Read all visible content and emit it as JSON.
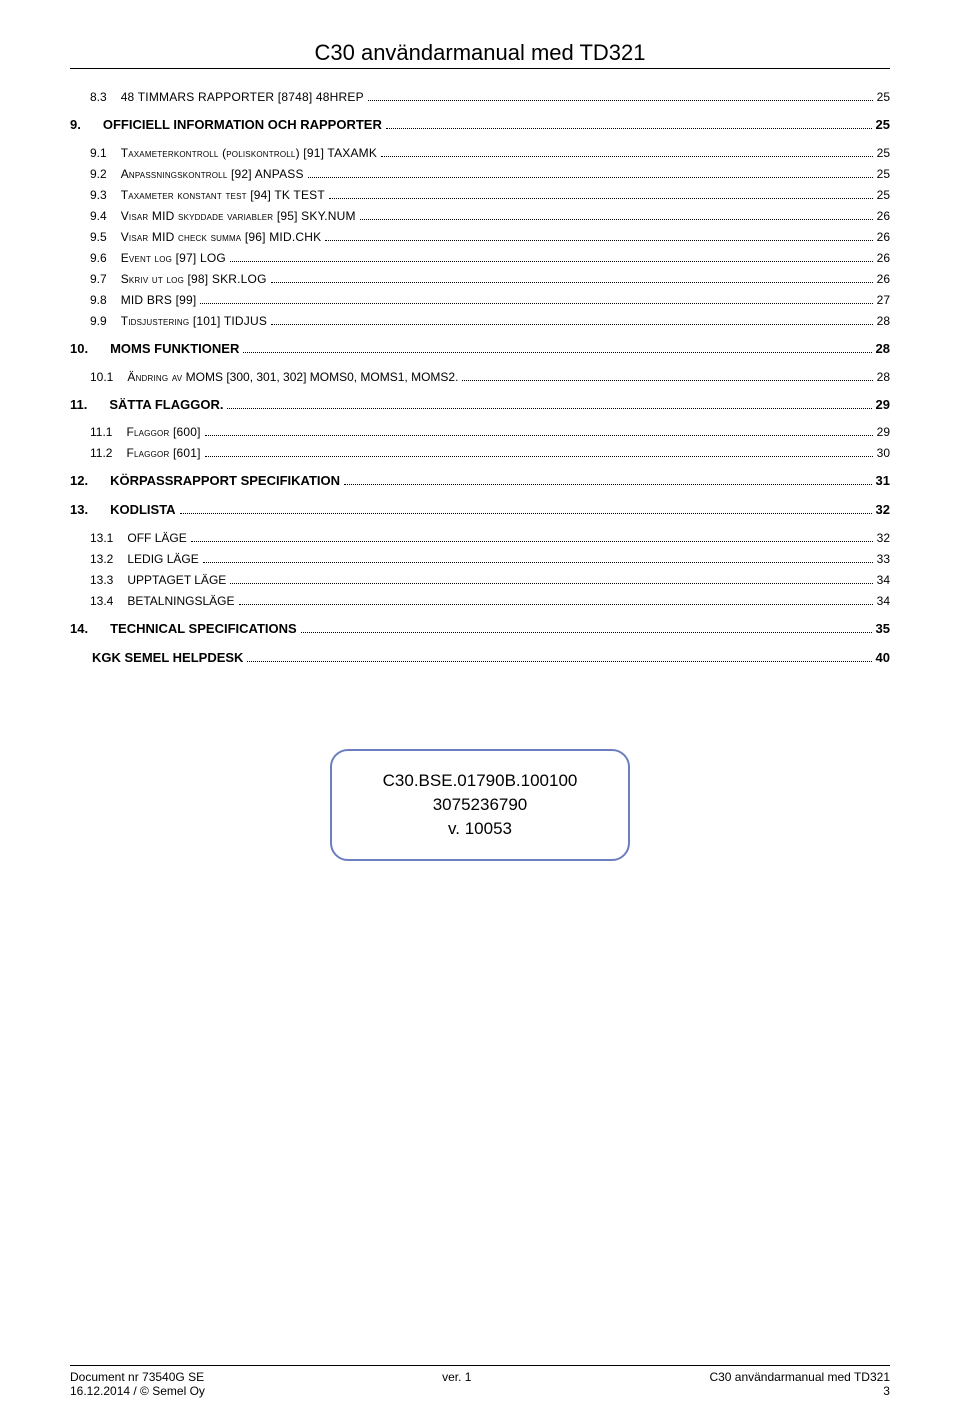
{
  "header_title": "C30 användarmanual med TD321",
  "toc": [
    {
      "level": 1,
      "num": "8.3",
      "title_smallcaps": "48 TIMMARS RAPPORTER [8748] 48HREP",
      "page": "25",
      "spacer_before": false
    },
    {
      "level": 0,
      "num": "9.",
      "title": "OFFICIELL INFORMATION OCH RAPPORTER",
      "page": "25",
      "spacer_before": true
    },
    {
      "level": 1,
      "num": "9.1",
      "title_mixed": [
        {
          "sc": "Taxameterkontroll (poliskontroll) [91] TAXAMK"
        }
      ],
      "page": "25",
      "spacer_before": true
    },
    {
      "level": 1,
      "num": "9.2",
      "title_mixed": [
        {
          "sc": "Anpassningskontroll [92] ANPASS"
        }
      ],
      "page": "25"
    },
    {
      "level": 1,
      "num": "9.3",
      "title_mixed": [
        {
          "sc": "Taxameter konstant test [94] TK TEST"
        }
      ],
      "page": "25"
    },
    {
      "level": 1,
      "num": "9.4",
      "title_mixed": [
        {
          "sc": "Visar MID skyddade variabler [95] SKY.NUM"
        }
      ],
      "page": "26"
    },
    {
      "level": 1,
      "num": "9.5",
      "title_mixed": [
        {
          "sc": "Visar MID check summa [96] MID.CHK"
        }
      ],
      "page": "26"
    },
    {
      "level": 1,
      "num": "9.6",
      "title_mixed": [
        {
          "sc": "Event log [97] LOG"
        }
      ],
      "page": "26"
    },
    {
      "level": 1,
      "num": "9.7",
      "title_mixed": [
        {
          "sc": "Skriv ut log [98] SKR.LOG"
        }
      ],
      "page": "26"
    },
    {
      "level": 1,
      "num": "9.8",
      "title_smallcaps": "MID BRS [99]",
      "page": "27"
    },
    {
      "level": 1,
      "num": "9.9",
      "title_mixed": [
        {
          "sc": "Tidsjustering [101] TIDJUS"
        }
      ],
      "page": "28"
    },
    {
      "level": 0,
      "num": "10.",
      "title": "MOMS FUNKTIONER",
      "page": "28",
      "spacer_before": true
    },
    {
      "level": 1,
      "num": "10.1",
      "title_mixed": [
        {
          "sc": "Ändring av"
        },
        {
          "plain": " MOMS [300, 301, 302] MOMS0, MOMS1, MOMS2."
        }
      ],
      "page": "28",
      "spacer_before": true
    },
    {
      "level": 0,
      "num": "11.",
      "title": "SÄTTA FLAGGOR.",
      "page": "29",
      "spacer_before": true
    },
    {
      "level": 1,
      "num": "11.1",
      "title_mixed": [
        {
          "sc": "Flaggor [600]"
        }
      ],
      "page": "29",
      "spacer_before": true
    },
    {
      "level": 1,
      "num": "11.2",
      "title_mixed": [
        {
          "sc": "Flaggor [601]"
        }
      ],
      "page": "30"
    },
    {
      "level": 0,
      "num": "12.",
      "title": "KÖRPASSRAPPORT SPECIFIKATION",
      "page": "31",
      "spacer_before": true
    },
    {
      "level": 0,
      "num": "13.",
      "title": "KODLISTA",
      "page": "32",
      "spacer_before": true
    },
    {
      "level": 1,
      "num": "13.1",
      "title": "OFF LÄGE",
      "page": "32",
      "spacer_before": true
    },
    {
      "level": 1,
      "num": "13.2",
      "title": "LEDIG LÄGE",
      "page": "33"
    },
    {
      "level": 1,
      "num": "13.3",
      "title": "UPPTAGET LÄGE",
      "page": "34"
    },
    {
      "level": 1,
      "num": "13.4",
      "title": "BETALNINGSLÄGE",
      "page": "34"
    },
    {
      "level": 0,
      "num": "14.",
      "title": "TECHNICAL SPECIFICATIONS",
      "page": "35",
      "spacer_before": true
    },
    {
      "level": 0,
      "num": "",
      "title": "KGK SEMEL HELPDESK",
      "page": "40",
      "spacer_before": true
    }
  ],
  "version_box": {
    "line1": "C30.BSE.01790B.100100",
    "line2": "3075236790",
    "line3": "v. 10053",
    "border_color": "#6b7fbf"
  },
  "footer": {
    "left1": "Document nr 73540G    SE",
    "left2": "16.12.2014 / © Semel Oy",
    "center1": "ver. 1",
    "right1": "C30 användarmanual med TD321",
    "right2": "3"
  }
}
